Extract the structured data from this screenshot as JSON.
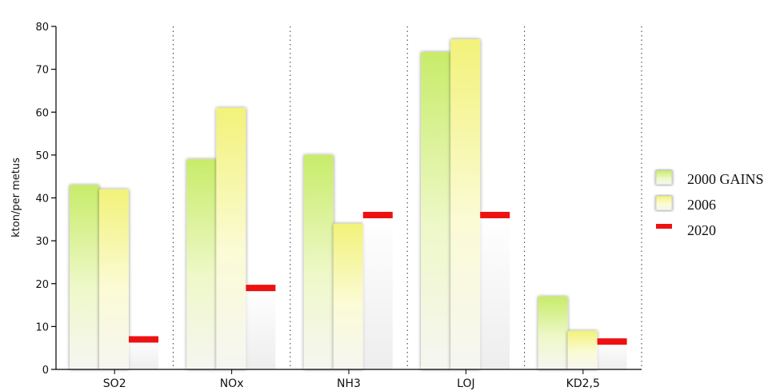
{
  "chart_data": {
    "type": "bar",
    "categories": [
      "SO2",
      "NOx",
      "NH3",
      "LOJ",
      "KD2,5"
    ],
    "ylabel": "kton/per metus",
    "xlabel": "",
    "ylim": [
      0,
      80
    ],
    "yticks": [
      0,
      10,
      20,
      30,
      40,
      50,
      60,
      70,
      80
    ],
    "grid": false,
    "legend_position": "right",
    "series": [
      {
        "name": "2000 GAINS",
        "values": [
          43,
          49,
          50,
          74,
          17
        ],
        "color": "#c8ec6a",
        "style": "bar"
      },
      {
        "name": "2006",
        "values": [
          42,
          61,
          34,
          77,
          9
        ],
        "color": "#f0f07a",
        "style": "bar"
      },
      {
        "name": "2020",
        "values": [
          7,
          19,
          36,
          36,
          6.5
        ],
        "color": "#ee1111",
        "style": "marker"
      }
    ]
  }
}
